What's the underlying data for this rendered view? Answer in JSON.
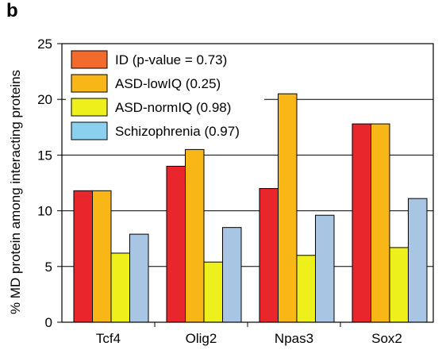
{
  "panel_label": "b",
  "chart_data": {
    "type": "bar",
    "title": "",
    "xlabel": "",
    "ylabel": "% MD protein among interacting proteins",
    "ylim": [
      0,
      25
    ],
    "yticks": [
      0,
      5,
      10,
      15,
      20,
      25
    ],
    "grid": true,
    "legend_position": "top-left",
    "categories": [
      "Tcf4",
      "Olig2",
      "Npas3",
      "Sox2"
    ],
    "series": [
      {
        "name": "ID (p-value = 0.73)",
        "values": [
          11.8,
          14.0,
          12.0,
          17.8
        ],
        "color": "#e8262b",
        "legend_color": "#f26b2c"
      },
      {
        "name": "ASD-lowIQ (0.25)",
        "values": [
          11.8,
          15.5,
          20.5,
          17.8
        ],
        "color": "#f9b617",
        "legend_color": "#f9b617"
      },
      {
        "name": "ASD-normIQ (0.98)",
        "values": [
          6.2,
          5.4,
          6.0,
          6.7
        ],
        "color": "#eef01b",
        "legend_color": "#eef01b"
      },
      {
        "name": "Schizophrenia (0.97)",
        "values": [
          7.9,
          8.5,
          9.6,
          11.1
        ],
        "color": "#a9c5e4",
        "legend_color": "#8cd0ef"
      }
    ]
  }
}
